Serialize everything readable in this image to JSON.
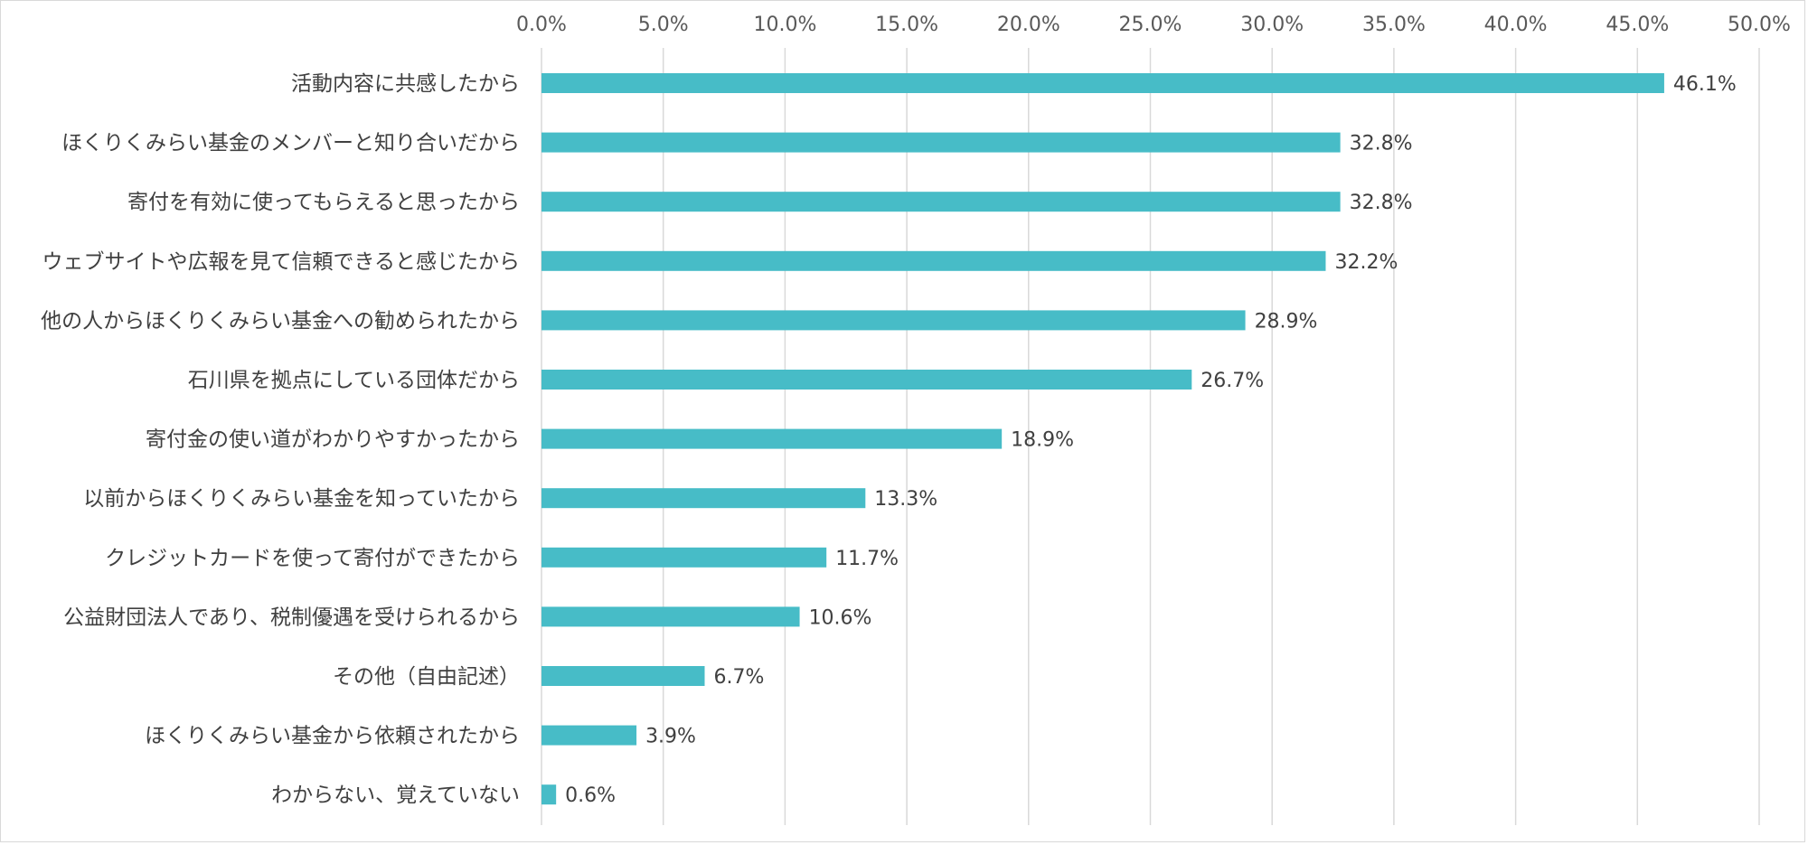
{
  "chart_data": {
    "type": "bar",
    "orientation": "horizontal",
    "categories": [
      "活動内容に共感したから",
      "ほくりくみらい基金のメンバーと知り合いだから",
      "寄付を有効に使ってもらえると思ったから",
      "ウェブサイトや広報を見て信頼できると感じたから",
      "他の人からほくりくみらい基金への勧められたから",
      "石川県を拠点にしている団体だから",
      "寄付金の使い道がわかりやすかったから",
      "以前からほくりくみらい基金を知っていたから",
      "クレジットカードを使って寄付ができたから",
      "公益財団法人であり、税制優遇を受けられるから",
      "その他（自由記述）",
      "ほくりくみらい基金から依頼されたから",
      "わからない、覚えていない"
    ],
    "values": [
      46.1,
      32.8,
      32.8,
      32.2,
      28.9,
      26.7,
      18.9,
      13.3,
      11.7,
      10.6,
      6.7,
      3.9,
      0.6
    ],
    "data_labels": [
      "46.1%",
      "32.8%",
      "32.8%",
      "32.2%",
      "28.9%",
      "26.7%",
      "18.9%",
      "13.3%",
      "11.7%",
      "10.6%",
      "6.7%",
      "3.9%",
      "0.6%"
    ],
    "x_ticks": [
      "0.0%",
      "5.0%",
      "10.0%",
      "15.0%",
      "20.0%",
      "25.0%",
      "30.0%",
      "35.0%",
      "40.0%",
      "45.0%",
      "50.0%"
    ],
    "xlim": [
      0,
      50
    ],
    "x_axis_position": "top",
    "grid": true,
    "bar_color": "#47bcc7",
    "title": "",
    "xlabel": "",
    "ylabel": ""
  }
}
